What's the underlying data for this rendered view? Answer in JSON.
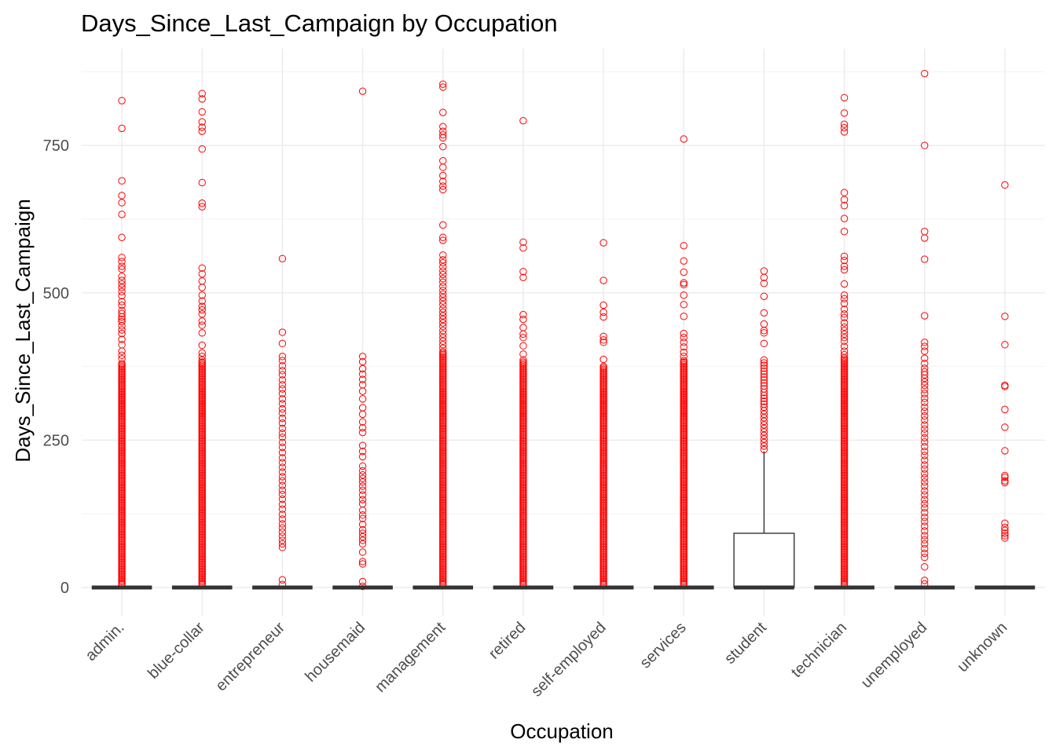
{
  "chart_data": {
    "type": "boxplot",
    "title": "Days_Since_Last_Campaign by Occupation",
    "xlabel": "Occupation",
    "ylabel": "Days_Since_Last_Campaign",
    "ylim": [
      -50,
      880
    ],
    "yticks": [
      0,
      250,
      500,
      750
    ],
    "grid": true,
    "colors": {
      "outlier": "#ff0000",
      "box": "#333333",
      "grid": "#ebebeb"
    },
    "categories": [
      "admin.",
      "blue-collar",
      "entrepreneur",
      "housemaid",
      "management",
      "retired",
      "self-employed",
      "services",
      "student",
      "technician",
      "unemployed",
      "unknown"
    ],
    "boxes": [
      {
        "category": "admin.",
        "q1": 0,
        "median": 0,
        "q3": 0,
        "whisker_low": 0,
        "whisker_high": 0,
        "outliers": [
          826,
          779,
          690,
          665,
          653,
          633,
          594,
          560,
          553,
          545,
          540,
          528,
          521,
          515,
          509,
          502,
          495,
          485,
          479,
          470,
          465,
          459,
          455,
          451,
          444,
          437,
          431,
          421,
          412,
          401,
          394,
          388
        ],
        "dense_bands": [
          [
            5,
            382
          ]
        ]
      },
      {
        "category": "blue-collar",
        "q1": 0,
        "median": 0,
        "q3": 0,
        "whisker_low": 0,
        "whisker_high": 0,
        "outliers": [
          838,
          829,
          807,
          790,
          781,
          774,
          744,
          687,
          652,
          646,
          542,
          532,
          520,
          509,
          496,
          486,
          477,
          471,
          464,
          452,
          445,
          432,
          411,
          398,
          392,
          386
        ],
        "dense_bands": [
          [
            5,
            384
          ]
        ]
      },
      {
        "category": "entrepreneur",
        "q1": 0,
        "median": 0,
        "q3": 0,
        "whisker_low": 0,
        "whisker_high": 0,
        "outliers": [
          558,
          433,
          414,
          392,
          385,
          376,
          368,
          361,
          352,
          344,
          337,
          329,
          320,
          312,
          303,
          296,
          287,
          279,
          270,
          262,
          255,
          246,
          238,
          229,
          220,
          212,
          204,
          196,
          188,
          181,
          173,
          165,
          158,
          150,
          141,
          133,
          124,
          116,
          108,
          101,
          94,
          87,
          80,
          74,
          68,
          13,
          5
        ],
        "dense_bands": []
      },
      {
        "category": "housemaid",
        "q1": 0,
        "median": 0,
        "q3": 0,
        "whisker_low": 0,
        "whisker_high": 0,
        "outliers": [
          842,
          392,
          383,
          371,
          362,
          353,
          344,
          333,
          320,
          305,
          294,
          281,
          271,
          263,
          241,
          231,
          222,
          206,
          198,
          191,
          185,
          179,
          172,
          165,
          157,
          149,
          142,
          131,
          123,
          117,
          107,
          98,
          92,
          86,
          80,
          74,
          60,
          44,
          40,
          10,
          2
        ],
        "dense_bands": []
      },
      {
        "category": "management",
        "q1": 0,
        "median": 0,
        "q3": 0,
        "whisker_low": 0,
        "whisker_high": 0,
        "outliers": [
          854,
          849,
          806,
          782,
          774,
          768,
          763,
          748,
          724,
          713,
          699,
          689,
          681,
          675,
          615,
          594,
          589,
          564,
          556,
          551,
          544,
          537,
          531,
          524,
          518,
          511,
          504,
          498,
          492,
          486,
          480,
          473,
          467,
          461,
          455,
          449,
          443,
          436,
          430,
          424,
          418,
          412,
          406
        ],
        "dense_bands": [
          [
            5,
            400
          ]
        ]
      },
      {
        "category": "retired",
        "q1": 0,
        "median": 0,
        "q3": 0,
        "whisker_low": 0,
        "whisker_high": 0,
        "outliers": [
          792,
          586,
          576,
          536,
          526,
          463,
          455,
          441,
          430,
          424,
          410,
          396,
          386
        ],
        "dense_bands": [
          [
            5,
            384
          ]
        ]
      },
      {
        "category": "self-employed",
        "q1": 0,
        "median": 0,
        "q3": 0,
        "whisker_low": 0,
        "whisker_high": 0,
        "outliers": [
          585,
          521,
          479,
          467,
          459,
          426,
          420,
          416,
          387
        ],
        "dense_bands": [
          [
            5,
            376
          ]
        ]
      },
      {
        "category": "services",
        "q1": 0,
        "median": 0,
        "q3": 0,
        "whisker_low": 0,
        "whisker_high": 0,
        "outliers": [
          761,
          580,
          554,
          535,
          517,
          514,
          496,
          480,
          460,
          431,
          424,
          416,
          408,
          399,
          392
        ],
        "dense_bands": [
          [
            5,
            386
          ]
        ]
      },
      {
        "category": "student",
        "q1": 0,
        "median": 0,
        "q3": 92,
        "whisker_low": 0,
        "whisker_high": 231,
        "outliers": [
          537,
          526,
          516,
          494,
          466,
          447,
          436,
          432,
          414,
          386,
          381,
          377,
          372,
          367,
          362,
          357,
          352,
          347,
          342,
          337,
          331,
          326,
          321,
          316,
          311,
          306,
          300,
          294,
          288,
          282,
          276,
          270,
          264,
          258,
          252,
          246,
          240,
          234
        ],
        "dense_bands": []
      },
      {
        "category": "technician",
        "q1": 0,
        "median": 0,
        "q3": 0,
        "whisker_low": 0,
        "whisker_high": 0,
        "outliers": [
          831,
          805,
          786,
          780,
          773,
          670,
          658,
          648,
          626,
          604,
          562,
          555,
          545,
          539,
          515,
          496,
          490,
          482,
          472,
          464,
          458,
          449,
          442,
          436,
          430,
          424,
          418,
          409,
          401,
          395
        ],
        "dense_bands": [
          [
            5,
            390
          ]
        ]
      },
      {
        "category": "unemployed",
        "q1": 0,
        "median": 0,
        "q3": 0,
        "whisker_low": 0,
        "whisker_high": 0,
        "outliers": [
          872,
          750,
          604,
          593,
          557,
          461,
          416,
          409,
          401,
          389,
          380,
          372,
          366,
          361,
          355,
          349,
          343,
          336,
          329,
          321,
          314,
          306,
          299,
          291,
          284,
          276,
          269,
          262,
          254,
          247,
          239,
          231,
          224,
          216,
          208,
          201,
          193,
          186,
          179,
          172,
          164,
          157,
          149,
          142,
          135,
          127,
          119,
          112,
          104,
          96,
          88,
          81,
          74,
          66,
          58,
          51,
          35,
          12,
          6
        ],
        "dense_bands": []
      },
      {
        "category": "unknown",
        "q1": 0,
        "median": 0,
        "q3": 0,
        "whisker_low": 0,
        "whisker_high": 0,
        "outliers": [
          683,
          460,
          412,
          343,
          341,
          302,
          272,
          232,
          190,
          187,
          181,
          178,
          109,
          102,
          97,
          92,
          88,
          84
        ],
        "dense_bands": []
      }
    ]
  }
}
